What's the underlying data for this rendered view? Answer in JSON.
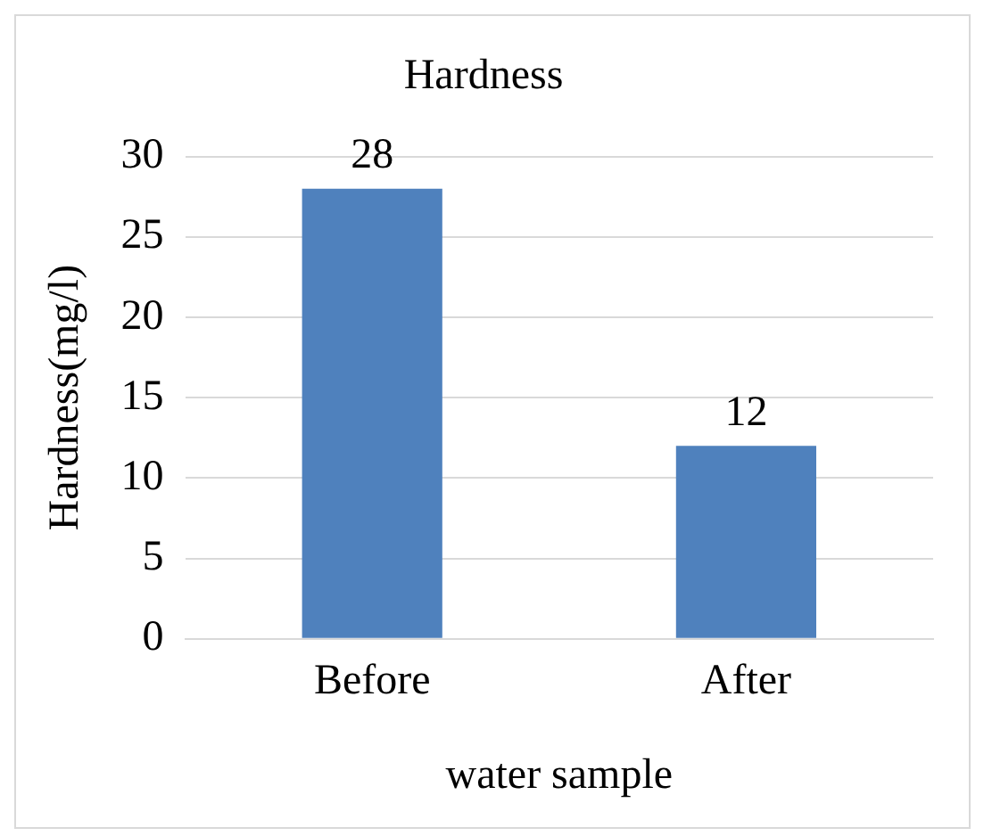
{
  "chart_data": {
    "type": "bar",
    "title": "Hardness",
    "xlabel": "water sample",
    "ylabel": "Hardness(mg/l)",
    "categories": [
      "Before",
      "After"
    ],
    "values": [
      28,
      12
    ],
    "color": "#4f81bd",
    "ylim": [
      0,
      30
    ],
    "yticks": [
      0,
      5,
      10,
      15,
      20,
      25,
      30
    ],
    "grid": "y",
    "data_labels": true,
    "legend": false
  }
}
